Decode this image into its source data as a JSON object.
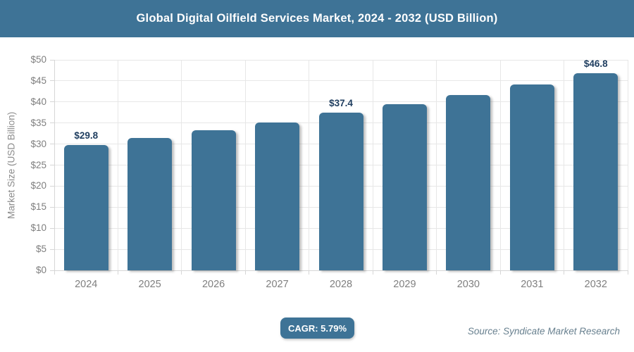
{
  "header": {
    "title": "Global Digital Oilfield Services Market, 2024 - 2032 (USD Billion)"
  },
  "chart_data": {
    "type": "bar",
    "title": "Global Digital Oilfield Services Market, 2024 - 2032 (USD Billion)",
    "categories": [
      "2024",
      "2025",
      "2026",
      "2027",
      "2028",
      "2029",
      "2030",
      "2031",
      "2032"
    ],
    "values": [
      29.8,
      31.5,
      33.3,
      35.2,
      37.4,
      39.5,
      41.7,
      44.2,
      46.8
    ],
    "bar_labels": [
      "$29.8",
      "",
      "",
      "",
      "$37.4",
      "",
      "",
      "",
      "$46.8"
    ],
    "xlabel": "",
    "ylabel": "Market Size (USD Billion)",
    "ylim": [
      0,
      50
    ],
    "ytick_step": 5,
    "ytick_prefix": "$",
    "grid": true,
    "legend": "none"
  },
  "colors": {
    "accent_blue": "#3e7396",
    "value_label_navy": "#1e3d5f",
    "axis_text_gray": "#7f7f7f",
    "axis_title_gray": "#8c8c8c",
    "gridline_gray": "#e7e7e7",
    "axis_line_gray": "#d6d6d6",
    "source_text": "#68808f",
    "header_text": "#ffffff"
  },
  "footer": {
    "cagr_label": "CAGR: 5.79%",
    "source": "Source: Syndicate Market Research"
  }
}
